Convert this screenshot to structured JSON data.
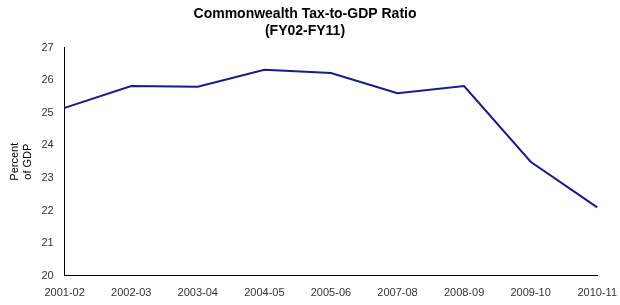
{
  "chart_data": {
    "type": "line",
    "title": "Commonwealth Tax-to-GDP Ratio\n(FY02-FY11)",
    "ylabel": "Percent\nof GDP",
    "categories": [
      "2001-02",
      "2002-03",
      "2003-04",
      "2004-05",
      "2005-06",
      "2007-08",
      "2008-09",
      "2009-10",
      "2010-11"
    ],
    "values": [
      25.15,
      25.82,
      25.8,
      26.32,
      26.22,
      25.6,
      25.82,
      23.5,
      22.1
    ],
    "color": "#1a1a8c",
    "ylim": [
      20,
      27
    ],
    "yticks": [
      20,
      21,
      22,
      23,
      24,
      25,
      26,
      27
    ],
    "grid": false,
    "legend": false
  }
}
